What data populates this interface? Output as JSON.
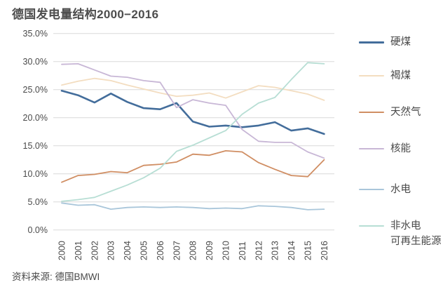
{
  "title": "德国发电量结构2000−2016",
  "source": "资料来源: 德国BMWI",
  "colors": {
    "grid": "#d9d9d9",
    "axis_text": "#4a4a4a",
    "title_text": "#4d4d4d"
  },
  "chart_data": {
    "type": "line",
    "title": "德国发电量结构2000−2016",
    "x": [
      2000,
      2001,
      2002,
      2003,
      2004,
      2005,
      2006,
      2007,
      2008,
      2009,
      2010,
      2011,
      2012,
      2013,
      2014,
      2015,
      2016
    ],
    "xlabel": "",
    "ylabel": "",
    "ylim": [
      0,
      35
    ],
    "ytick_step": 5,
    "ytick_suffix": "%",
    "grid": "horizontal-only",
    "legend_position": "right",
    "series": [
      {
        "key": "hard-coal",
        "name": "硬煤",
        "legend_lines": [
          "硬煤"
        ],
        "color": "#436d9b",
        "width": 2.6,
        "values": [
          24.8,
          24.0,
          22.7,
          24.3,
          22.8,
          21.7,
          21.5,
          22.6,
          19.3,
          18.4,
          18.6,
          18.3,
          18.6,
          19.2,
          17.7,
          18.1,
          17.1
        ]
      },
      {
        "key": "lignite",
        "name": "褐煤",
        "legend_lines": [
          "褐煤"
        ],
        "color": "#f3ddc0",
        "width": 1.8,
        "values": [
          25.8,
          26.5,
          27.0,
          26.6,
          25.8,
          25.1,
          24.4,
          23.8,
          24.0,
          24.4,
          23.5,
          24.6,
          25.7,
          25.4,
          24.8,
          24.2,
          23.1
        ]
      },
      {
        "key": "natural-gas",
        "name": "天然气",
        "legend_lines": [
          "天然气"
        ],
        "color": "#d08e63",
        "width": 1.8,
        "values": [
          8.5,
          9.7,
          9.9,
          10.4,
          10.2,
          11.5,
          11.7,
          12.1,
          13.5,
          13.3,
          14.1,
          13.9,
          12.0,
          10.8,
          9.7,
          9.5,
          12.5
        ]
      },
      {
        "key": "nuclear",
        "name": "核能",
        "legend_lines": [
          "核能"
        ],
        "color": "#c8b7d6",
        "width": 1.8,
        "values": [
          29.5,
          29.6,
          28.5,
          27.4,
          27.2,
          26.6,
          26.3,
          21.8,
          23.2,
          22.6,
          22.2,
          17.9,
          15.8,
          15.6,
          15.6,
          13.9,
          12.8
        ]
      },
      {
        "key": "hydro",
        "name": "水电",
        "legend_lines": [
          "水电"
        ],
        "color": "#a9c6da",
        "width": 1.8,
        "values": [
          4.8,
          4.4,
          4.5,
          3.7,
          4.0,
          4.1,
          4.0,
          4.1,
          4.0,
          3.8,
          3.9,
          3.8,
          4.3,
          4.2,
          4.0,
          3.6,
          3.7
        ]
      },
      {
        "key": "non-hydro-renewables",
        "name": "非水电可再生能源",
        "legend_lines": [
          "非水电",
          "可再生能源"
        ],
        "color": "#b7ded4",
        "width": 1.8,
        "values": [
          5.1,
          5.4,
          5.8,
          6.9,
          8.0,
          9.3,
          11.0,
          14.0,
          15.1,
          16.4,
          17.7,
          20.6,
          22.6,
          23.6,
          26.8,
          29.8,
          29.6
        ]
      }
    ]
  }
}
